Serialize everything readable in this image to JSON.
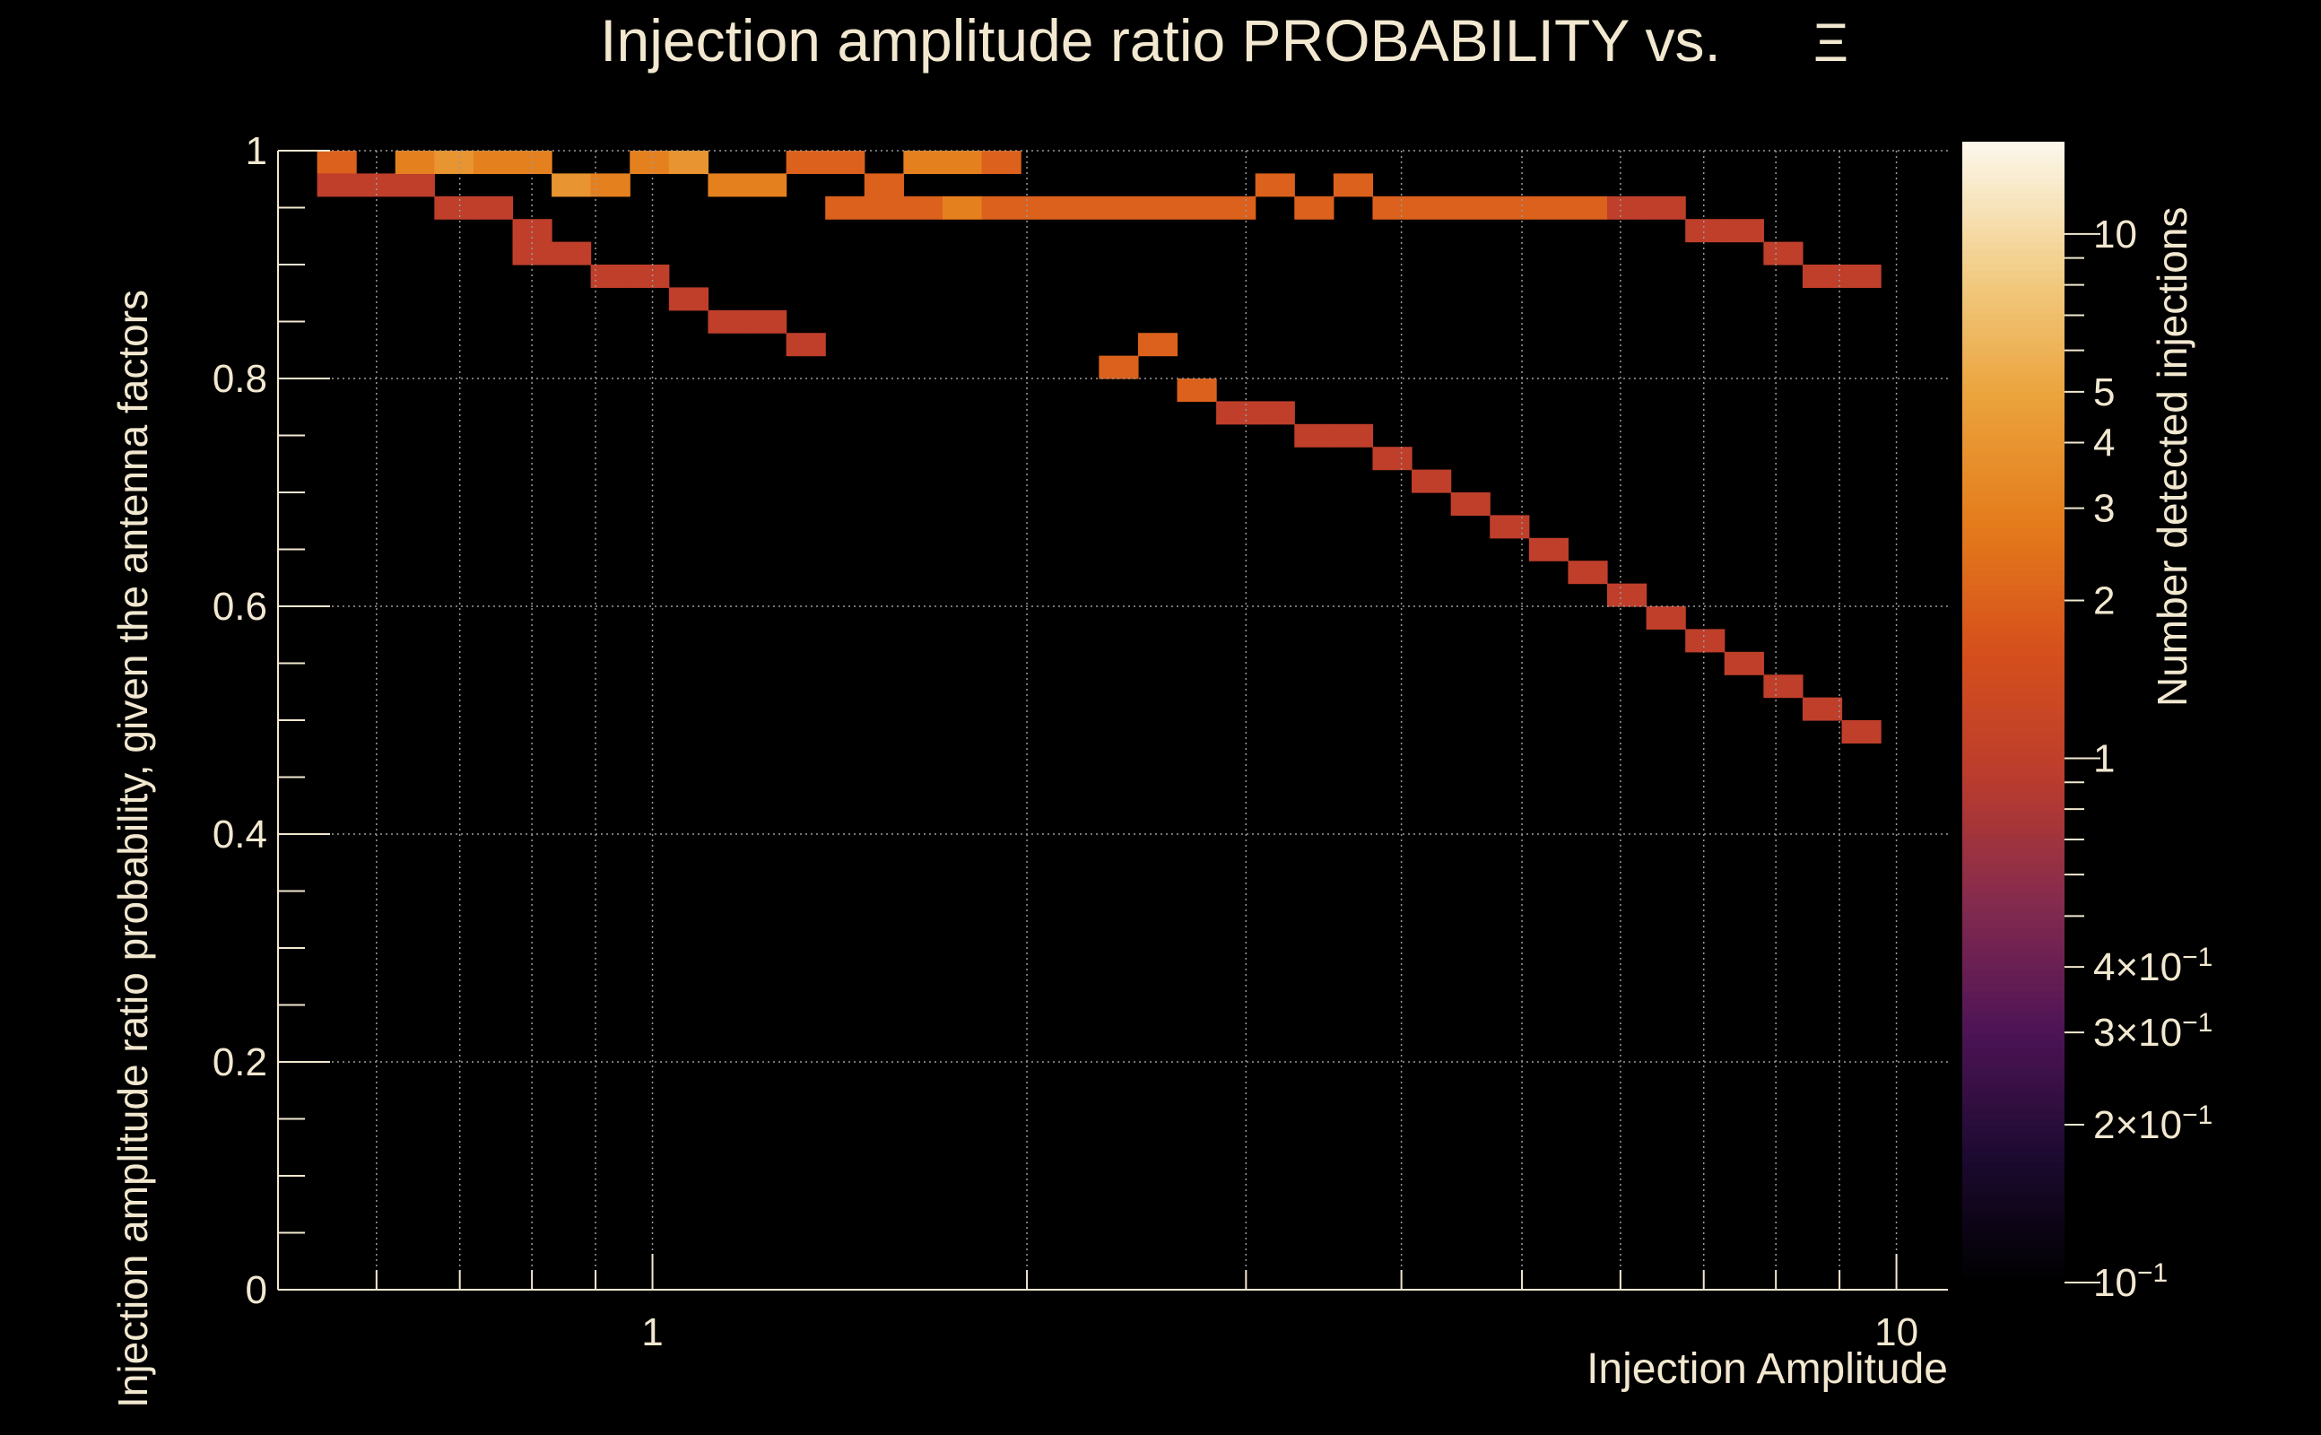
{
  "chart_data": {
    "type": "heatmap",
    "title": "Injection amplitude ratio PROBABILITY vs.",
    "title_symbol": "Ξ",
    "xlabel": "Injection Amplitude",
    "ylabel": "Injection amplitude ratio probability, given the antenna factors",
    "zlabel": "Number detected injections",
    "x_scale": "log",
    "xlim": [
      0.5,
      11
    ],
    "ylim": [
      0,
      1
    ],
    "z_scale": "log",
    "zlim": [
      0.1,
      15
    ],
    "x_ticks": [
      {
        "value": 1,
        "label": "1"
      },
      {
        "value": 10,
        "label": "10"
      }
    ],
    "y_ticks": [
      {
        "value": 0,
        "label": "0"
      },
      {
        "value": 0.2,
        "label": "0.2"
      },
      {
        "value": 0.4,
        "label": "0.4"
      },
      {
        "value": 0.6,
        "label": "0.6"
      },
      {
        "value": 0.8,
        "label": "0.8"
      },
      {
        "value": 1,
        "label": "1"
      }
    ],
    "z_ticks": [
      {
        "value": 0.1,
        "label": "10",
        "exp": "−1"
      },
      {
        "value": 0.2,
        "label": "2×10",
        "exp": "−1"
      },
      {
        "value": 0.3,
        "label": "3×10",
        "exp": "−1"
      },
      {
        "value": 0.4,
        "label": "4×10",
        "exp": "−1"
      },
      {
        "value": 1,
        "label": "1",
        "exp": ""
      },
      {
        "value": 2,
        "label": "2",
        "exp": ""
      },
      {
        "value": 3,
        "label": "3",
        "exp": ""
      },
      {
        "value": 4,
        "label": "4",
        "exp": ""
      },
      {
        "value": 5,
        "label": "5",
        "exp": ""
      },
      {
        "value": 10,
        "label": "10",
        "exp": ""
      }
    ],
    "grid": true,
    "colormap": [
      "#000000",
      "#1c0a30",
      "#4e1456",
      "#842b4e",
      "#bb3c2d",
      "#d6501c",
      "#e47c1c",
      "#eba33c",
      "#f2ce88",
      "#fcf8ec"
    ],
    "x_bin_edges": [
      0.5,
      0.5375,
      0.5778,
      0.6212,
      0.6678,
      0.7179,
      0.7718,
      0.8297,
      0.8919,
      0.9589,
      1.0308,
      1.1082,
      1.1914,
      1.2808,
      1.3769,
      1.4802,
      1.5913,
      1.7107,
      1.8391,
      1.9771,
      2.1255,
      2.285,
      2.4565,
      2.6408,
      2.839,
      3.0521,
      3.2811,
      3.5273,
      3.792,
      4.0766,
      4.3825,
      4.7114,
      5.065,
      5.4451,
      5.8537,
      6.293,
      6.7652,
      7.2729,
      7.8187,
      8.4054,
      9.0362,
      9.7143,
      10.4434
    ],
    "y_bins": 50,
    "y_bin_width": 0.02,
    "cells": [
      [
        1,
        49,
        2
      ],
      [
        1,
        48,
        1
      ],
      [
        2,
        48,
        1
      ],
      [
        3,
        48,
        1
      ],
      [
        4,
        47,
        1
      ],
      [
        5,
        47,
        1
      ],
      [
        6,
        46,
        1
      ],
      [
        6,
        45,
        1
      ],
      [
        7,
        45,
        1
      ],
      [
        8,
        44,
        1
      ],
      [
        9,
        44,
        1
      ],
      [
        10,
        43,
        1
      ],
      [
        11,
        42,
        1
      ],
      [
        12,
        42,
        1
      ],
      [
        13,
        41,
        1
      ],
      [
        3,
        49,
        3
      ],
      [
        4,
        49,
        4
      ],
      [
        5,
        49,
        3
      ],
      [
        6,
        49,
        3
      ],
      [
        7,
        48,
        4
      ],
      [
        8,
        48,
        3
      ],
      [
        9,
        49,
        3
      ],
      [
        10,
        49,
        4
      ],
      [
        11,
        48,
        3
      ],
      [
        12,
        48,
        3
      ],
      [
        13,
        49,
        2
      ],
      [
        14,
        49,
        2
      ],
      [
        15,
        48,
        2
      ],
      [
        16,
        49,
        3
      ],
      [
        17,
        49,
        3
      ],
      [
        18,
        49,
        2
      ],
      [
        14,
        47,
        2
      ],
      [
        15,
        47,
        2
      ],
      [
        16,
        47,
        2
      ],
      [
        17,
        47,
        3
      ],
      [
        18,
        47,
        2
      ],
      [
        19,
        47,
        2
      ],
      [
        20,
        47,
        2
      ],
      [
        21,
        47,
        2
      ],
      [
        22,
        47,
        2
      ],
      [
        23,
        47,
        2
      ],
      [
        24,
        47,
        2
      ],
      [
        25,
        48,
        2
      ],
      [
        26,
        47,
        2
      ],
      [
        27,
        48,
        2
      ],
      [
        28,
        47,
        2
      ],
      [
        29,
        47,
        2
      ],
      [
        30,
        47,
        2
      ],
      [
        31,
        47,
        2
      ],
      [
        32,
        47,
        2
      ],
      [
        33,
        47,
        2
      ],
      [
        34,
        47,
        1
      ],
      [
        35,
        47,
        1
      ],
      [
        36,
        46,
        1
      ],
      [
        37,
        46,
        1
      ],
      [
        38,
        45,
        1
      ],
      [
        39,
        44,
        1
      ],
      [
        40,
        44,
        1
      ],
      [
        21,
        40,
        2
      ],
      [
        22,
        41,
        2
      ],
      [
        23,
        39,
        2
      ],
      [
        24,
        38,
        1
      ],
      [
        25,
        38,
        1
      ],
      [
        26,
        37,
        1
      ],
      [
        27,
        37,
        1
      ],
      [
        28,
        36,
        1
      ],
      [
        29,
        35,
        1
      ],
      [
        30,
        34,
        1
      ],
      [
        31,
        33,
        1
      ],
      [
        32,
        32,
        1
      ],
      [
        33,
        31,
        1
      ],
      [
        34,
        30,
        1
      ],
      [
        35,
        29,
        1
      ],
      [
        36,
        28,
        1
      ],
      [
        37,
        27,
        1
      ],
      [
        38,
        26,
        1
      ],
      [
        39,
        25,
        1
      ],
      [
        40,
        24,
        1
      ]
    ]
  }
}
